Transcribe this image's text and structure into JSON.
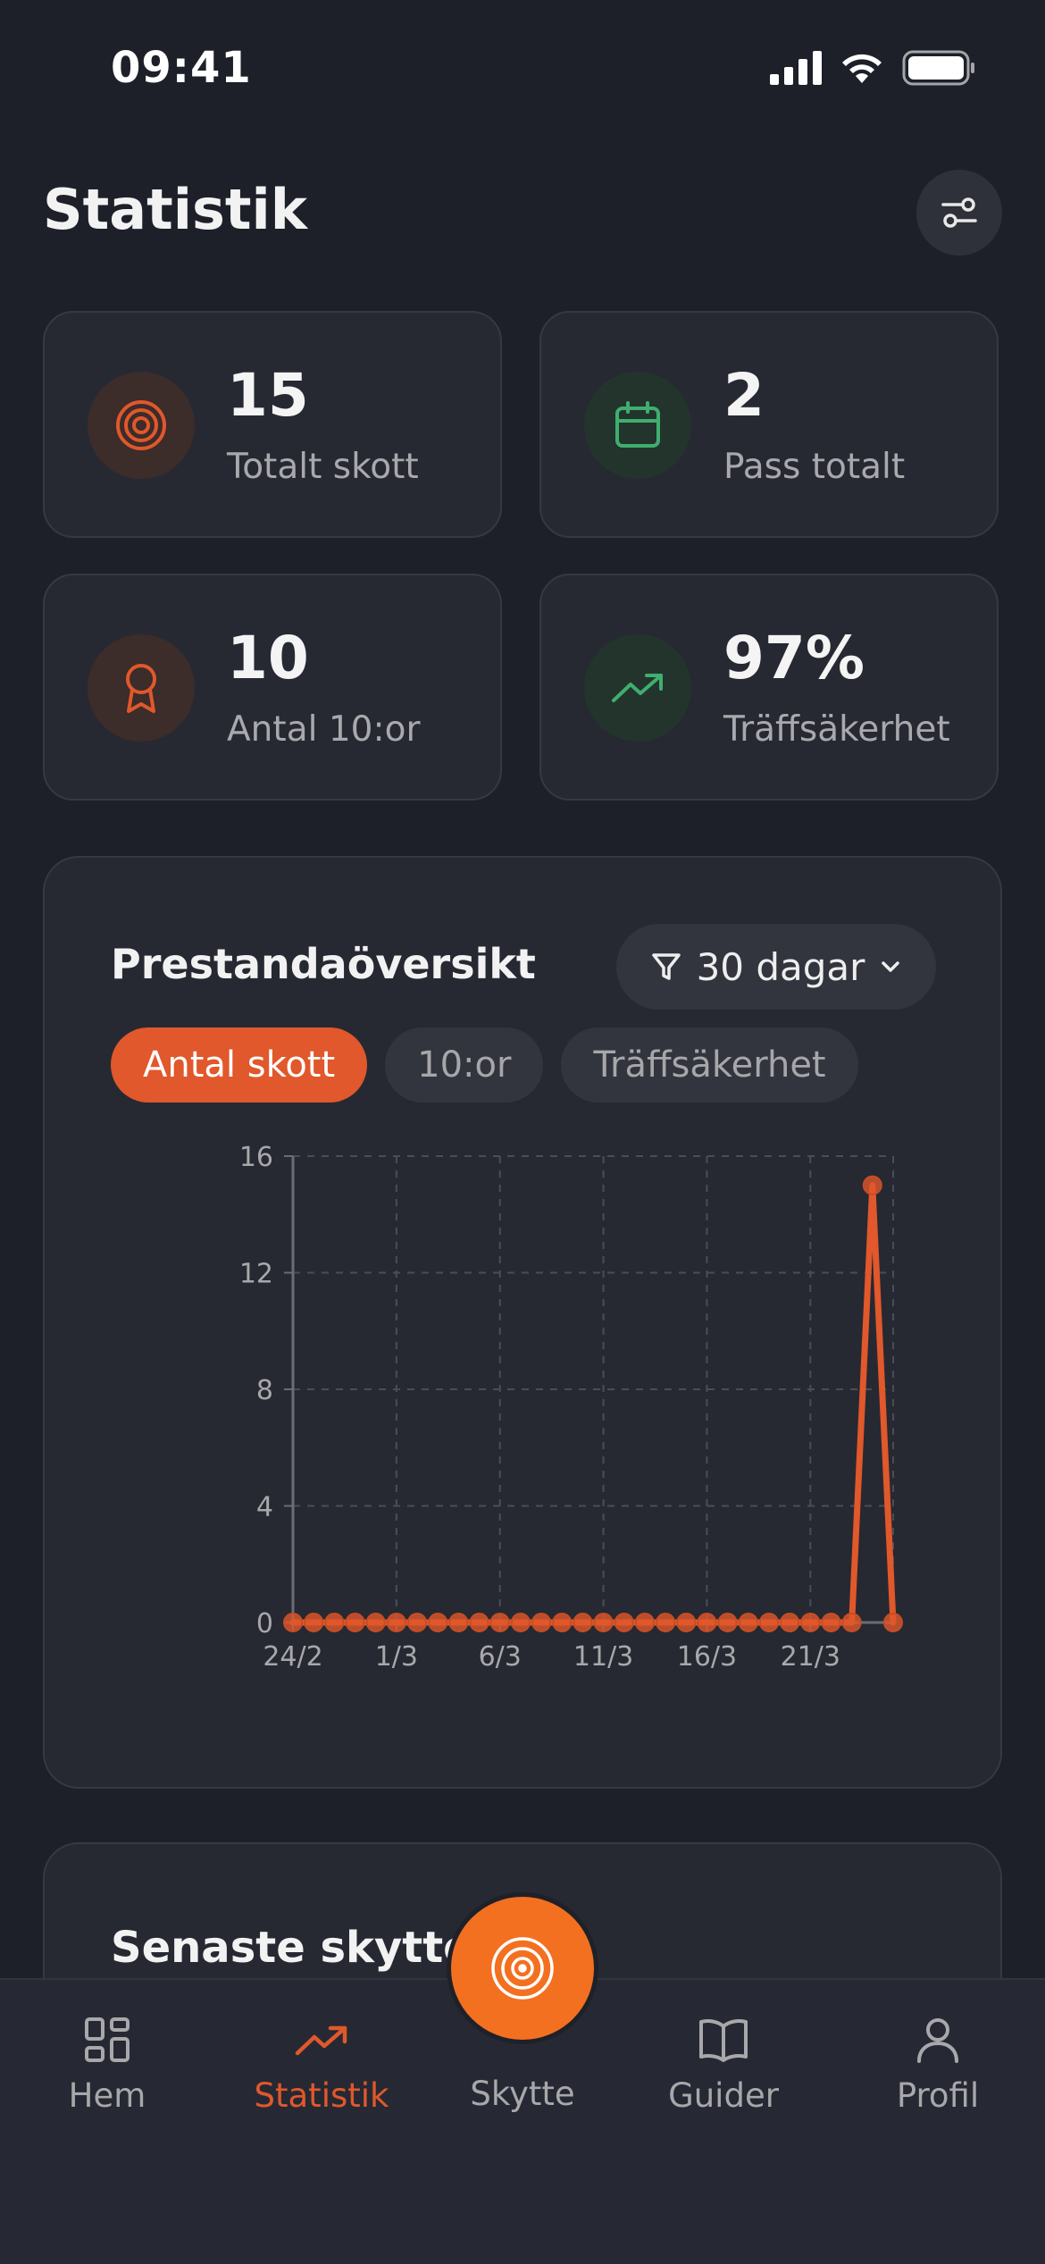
{
  "status_bar": {
    "time": "09:41"
  },
  "page": {
    "title": "Statistik"
  },
  "stats": [
    {
      "value": "15",
      "label": "Totalt skott",
      "icon": "target-icon",
      "color": "#e0582b"
    },
    {
      "value": "2",
      "label": "Pass totalt",
      "icon": "calendar-icon",
      "color": "#3fae6f"
    },
    {
      "value": "10",
      "label": "Antal 10:or",
      "icon": "award-icon",
      "color": "#e0582b"
    },
    {
      "value": "97%",
      "label": "Träffsäkerhet",
      "icon": "trending-up-icon",
      "color": "#3fae6f"
    }
  ],
  "chart_card": {
    "title": "Prestandaöversikt",
    "range_label": "30 dagar",
    "tabs": [
      "Antal skott",
      "10:or",
      "Träffsäkerhet"
    ],
    "active_tab": 0
  },
  "chart_data": {
    "type": "line",
    "x_ticks": [
      "24/2",
      "1/3",
      "6/3",
      "11/3",
      "16/3",
      "21/3"
    ],
    "y_ticks": [
      0,
      4,
      8,
      12,
      16
    ],
    "ylim": [
      0,
      16
    ],
    "grid": true,
    "color": "#e0582b",
    "values": [
      0,
      0,
      0,
      0,
      0,
      0,
      0,
      0,
      0,
      0,
      0,
      0,
      0,
      0,
      0,
      0,
      0,
      0,
      0,
      0,
      0,
      0,
      0,
      0,
      0,
      0,
      0,
      0,
      15,
      0
    ]
  },
  "recent": {
    "title": "Senaste skyttepass"
  },
  "nav": {
    "items": [
      {
        "label": "Hem",
        "icon": "grid-icon"
      },
      {
        "label": "Statistik",
        "icon": "trending-up-icon"
      },
      {
        "label": "Skytte",
        "icon": "target-icon"
      },
      {
        "label": "Guider",
        "icon": "book-icon"
      },
      {
        "label": "Profil",
        "icon": "user-icon"
      }
    ],
    "active": 1
  },
  "colors": {
    "accent": "#e0582b",
    "fab": "#f37021",
    "success": "#3fae6f",
    "background": "#1d2029",
    "card": "#262932"
  }
}
